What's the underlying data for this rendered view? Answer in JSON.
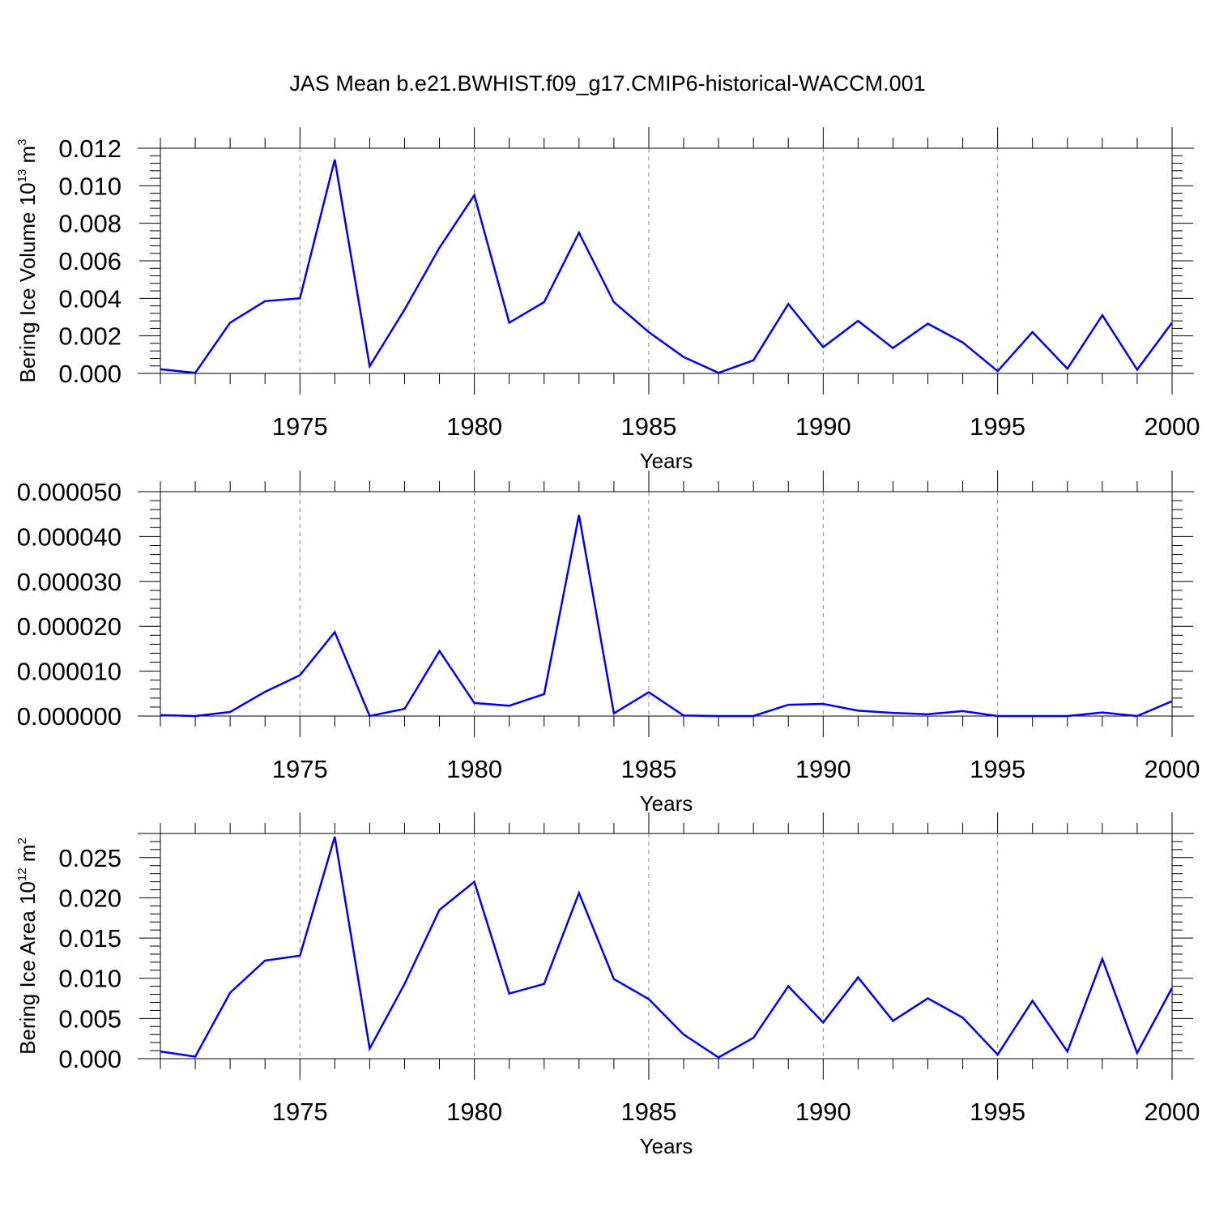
{
  "figure": {
    "title": "JAS Mean b.e21.BWHIST.f09_g17.CMIP6-historical-WACCM.001"
  },
  "chart_data": [
    {
      "type": "line",
      "title": "",
      "xlabel": "Years",
      "ylabel": {
        "main": "Bering Ice Volume 10",
        "exp": "13",
        "unit": " m",
        "unit_exp": "3"
      },
      "xlim": [
        1971,
        2000
      ],
      "ylim": [
        0,
        0.012
      ],
      "x_ticks": [
        1975,
        1980,
        1985,
        1990,
        1995,
        2000
      ],
      "y_ticks": [
        "0.000",
        "0.002",
        "0.004",
        "0.006",
        "0.008",
        "0.010",
        "0.012"
      ],
      "y_tick_values": [
        0,
        0.002,
        0.004,
        0.006,
        0.008,
        0.01,
        0.012
      ],
      "grid": "vertical-dashed",
      "color": "#0000ee",
      "x": [
        1971,
        1972,
        1973,
        1974,
        1975,
        1976,
        1977,
        1978,
        1979,
        1980,
        1981,
        1982,
        1983,
        1984,
        1985,
        1986,
        1987,
        1988,
        1989,
        1990,
        1991,
        1992,
        1993,
        1994,
        1995,
        1996,
        1997,
        1998,
        1999,
        2000
      ],
      "y": [
        0.00022,
        3e-05,
        0.0027,
        0.00385,
        0.004,
        0.0114,
        0.00038,
        0.0034,
        0.0067,
        0.0095,
        0.0027,
        0.0038,
        0.0075,
        0.0038,
        0.0022,
        0.00087,
        3e-05,
        0.0007,
        0.0037,
        0.0014,
        0.0028,
        0.00135,
        0.00265,
        0.00165,
        0.00012,
        0.0022,
        0.00025,
        0.0031,
        0.0002,
        0.0027
      ]
    },
    {
      "type": "line",
      "title": "",
      "xlabel": "Years",
      "ylabel": null,
      "xlim": [
        1971,
        2000
      ],
      "ylim": [
        0,
        5e-05
      ],
      "x_ticks": [
        1975,
        1980,
        1985,
        1990,
        1995,
        2000
      ],
      "y_ticks": [
        "0.000000",
        "0.000010",
        "0.000020",
        "0.000030",
        "0.000040",
        "0.000050"
      ],
      "y_tick_values": [
        0,
        1e-05,
        2e-05,
        3e-05,
        4e-05,
        5e-05
      ],
      "grid": "vertical-dashed",
      "color": "#0000ee",
      "x": [
        1971,
        1972,
        1973,
        1974,
        1975,
        1976,
        1977,
        1978,
        1979,
        1980,
        1981,
        1982,
        1983,
        1984,
        1985,
        1986,
        1987,
        1988,
        1989,
        1990,
        1991,
        1992,
        1993,
        1994,
        1995,
        1996,
        1997,
        1998,
        1999,
        2000
      ],
      "y": [
        2e-07,
        0.0,
        9e-07,
        5.4e-06,
        9.1e-06,
        1.87e-05,
        0.0,
        1.6e-06,
        1.45e-05,
        2.9e-06,
        2.3e-06,
        4.9e-06,
        4.48e-05,
        6e-07,
        5.3e-06,
        1e-07,
        0.0,
        0.0,
        2.5e-06,
        2.7e-06,
        1.2e-06,
        7e-07,
        4e-07,
        1.1e-06,
        0.0,
        0.0,
        0.0,
        8e-07,
        0.0,
        3.3e-06
      ]
    },
    {
      "type": "line",
      "title": "",
      "xlabel": "Years",
      "ylabel": {
        "main": "Bering Ice Area 10",
        "exp": "12",
        "unit": " m",
        "unit_exp": "2"
      },
      "xlim": [
        1971,
        2000
      ],
      "ylim": [
        0,
        0.028
      ],
      "x_ticks": [
        1975,
        1980,
        1985,
        1990,
        1995,
        2000
      ],
      "y_ticks": [
        "0.000",
        "0.005",
        "0.010",
        "0.015",
        "0.020",
        "0.025"
      ],
      "y_tick_values": [
        0,
        0.005,
        0.01,
        0.015,
        0.02,
        0.025
      ],
      "grid": "vertical-dashed",
      "color": "#0000ee",
      "x": [
        1971,
        1972,
        1973,
        1974,
        1975,
        1976,
        1977,
        1978,
        1979,
        1980,
        1981,
        1982,
        1983,
        1984,
        1985,
        1986,
        1987,
        1988,
        1989,
        1990,
        1991,
        1992,
        1993,
        1994,
        1995,
        1996,
        1997,
        1998,
        1999,
        2000
      ],
      "y": [
        0.0009,
        0.00025,
        0.0082,
        0.0122,
        0.0128,
        0.0276,
        0.00125,
        0.0093,
        0.0185,
        0.022,
        0.0081,
        0.0093,
        0.0206,
        0.0099,
        0.0074,
        0.003,
        0.00015,
        0.0026,
        0.009,
        0.0045,
        0.0101,
        0.0047,
        0.0075,
        0.0051,
        0.0005,
        0.0072,
        0.0009,
        0.0124,
        0.0007,
        0.0088
      ]
    }
  ]
}
